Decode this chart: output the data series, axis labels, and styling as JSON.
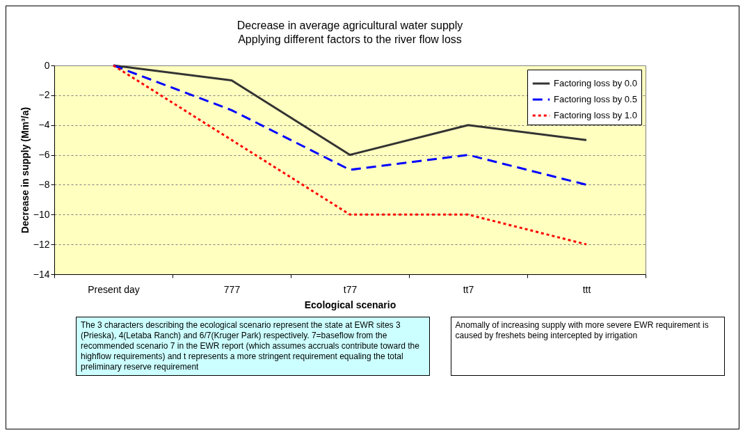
{
  "chart_data": {
    "type": "line",
    "title": "Decrease in average agricultural water supply",
    "subtitle": "Applying different factors to the river flow loss",
    "xlabel": "Ecological scenario",
    "ylabel": "Decrease in supply (Mm³/a)",
    "categories": [
      "Present day",
      "777",
      "t77",
      "tt7",
      "ttt"
    ],
    "series": [
      {
        "name": "Factoring loss by 0.0",
        "color": "#333333",
        "line_style": "solid",
        "values": [
          0,
          -1,
          -6,
          -4,
          -5
        ]
      },
      {
        "name": "Factoring loss by 0.5",
        "color": "#0000ff",
        "line_style": "dashed",
        "values": [
          0,
          -3,
          -7,
          -6,
          -8
        ]
      },
      {
        "name": "Factoring loss by 1.0",
        "color": "#ff0000",
        "line_style": "dotted",
        "values": [
          0,
          -5,
          -10,
          -10,
          -12
        ]
      }
    ],
    "ylim": [
      -14,
      0
    ],
    "yticks": [
      -14,
      -12,
      -10,
      -8,
      -6,
      -4,
      -2,
      0
    ],
    "grid": "y",
    "legend": "top right",
    "marker": "none",
    "annotations": [
      "The 3 characters describing the ecological scenario represent the state at EWR sites 3 (Prieska), 4(Letaba Ranch) and 6/7(Kruger Park) respectively. 7=baseflow from the recommended scenario 7 in the EWR report (which assumes accruals contribute toward the highflow requirements) and t represents a more stringent requirement equaling the total preliminary reserve requirement",
      "Anomally of increasing supply with more severe EWR requirement is caused by freshets being intercepted by irrigation"
    ]
  }
}
